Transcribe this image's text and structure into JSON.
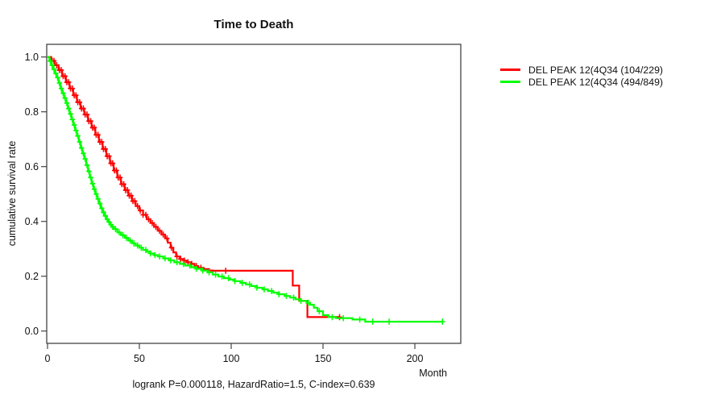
{
  "chart_data": {
    "type": "line",
    "subtype": "kaplan-meier-step-curves",
    "title": "Time to Death",
    "xlabel": "Month",
    "ylabel": "cumulative survival rate",
    "footer": "logrank P=0.000118, HazardRatio=1.5, C-index=0.639",
    "xlim": [
      0,
      225
    ],
    "ylim": [
      0,
      1.0
    ],
    "x_ticks": [
      0,
      50,
      100,
      150,
      200
    ],
    "y_ticks": [
      "0.0",
      "0.2",
      "0.4",
      "0.6",
      "0.8",
      "1.0"
    ],
    "grid": false,
    "legend_position": "top-right-outside",
    "censor_mark": "plus",
    "colors": {
      "axis": "#444444",
      "text": "#111111",
      "background": "#ffffff"
    },
    "series": [
      {
        "name": "DEL PEAK 12(4Q34 (104/229)",
        "color": "#ff0000",
        "points": [
          [
            0,
            1.0
          ],
          [
            2,
            0.986
          ],
          [
            4,
            0.97
          ],
          [
            6,
            0.952
          ],
          [
            8,
            0.93
          ],
          [
            10,
            0.908
          ],
          [
            12,
            0.885
          ],
          [
            14,
            0.86
          ],
          [
            16,
            0.835
          ],
          [
            18,
            0.812
          ],
          [
            20,
            0.79
          ],
          [
            22,
            0.766
          ],
          [
            24,
            0.742
          ],
          [
            26,
            0.716
          ],
          [
            28,
            0.69
          ],
          [
            30,
            0.664
          ],
          [
            32,
            0.638
          ],
          [
            34,
            0.612
          ],
          [
            36,
            0.586
          ],
          [
            38,
            0.56
          ],
          [
            40,
            0.536
          ],
          [
            42,
            0.514
          ],
          [
            44,
            0.494
          ],
          [
            46,
            0.474
          ],
          [
            48,
            0.456
          ],
          [
            50,
            0.44
          ],
          [
            52,
            0.424
          ],
          [
            54,
            0.408
          ],
          [
            56,
            0.394
          ],
          [
            58,
            0.38
          ],
          [
            60,
            0.366
          ],
          [
            62,
            0.352
          ],
          [
            64,
            0.338
          ],
          [
            65.5,
            0.322
          ],
          [
            67,
            0.304
          ],
          [
            68.5,
            0.287
          ],
          [
            70,
            0.272
          ],
          [
            72,
            0.263
          ],
          [
            74,
            0.257
          ],
          [
            76,
            0.251
          ],
          [
            78,
            0.245
          ],
          [
            80,
            0.237
          ],
          [
            82,
            0.231
          ],
          [
            85,
            0.226
          ],
          [
            88,
            0.221
          ],
          [
            90,
            0.22
          ],
          [
            133.5,
            0.166
          ],
          [
            137,
            0.11
          ],
          [
            141.5,
            0.051
          ],
          [
            159,
            0.051
          ]
        ],
        "censor_times": [
          2.5,
          3.5,
          5,
          6.5,
          7.5,
          8.5,
          9.5,
          10.5,
          11.5,
          12.5,
          13.5,
          14.5,
          15.5,
          16.5,
          17.5,
          18.5,
          19.5,
          20.5,
          21.5,
          22.5,
          23.5,
          24.5,
          25.5,
          26.5,
          27.5,
          28.5,
          29.5,
          30.5,
          31.5,
          32.5,
          33.5,
          34.5,
          35.5,
          36.5,
          37.5,
          38.5,
          39.5,
          40.5,
          41.5,
          42.5,
          43.5,
          44.5,
          45.5,
          46.5,
          47.5,
          49,
          50.5,
          52,
          53.5,
          55,
          57,
          59,
          61,
          63,
          65,
          67.5,
          70.5,
          72.5,
          74.5,
          76.5,
          78.5,
          81,
          83.5,
          97,
          159
        ]
      },
      {
        "name": "DEL PEAK 12(4Q34 (494/849)",
        "color": "#00ff00",
        "points": [
          [
            0,
            1.0
          ],
          [
            1,
            0.985
          ],
          [
            2,
            0.97
          ],
          [
            3,
            0.955
          ],
          [
            4,
            0.94
          ],
          [
            5,
            0.925
          ],
          [
            6,
            0.905
          ],
          [
            7,
            0.885
          ],
          [
            8,
            0.868
          ],
          [
            9,
            0.85
          ],
          [
            10,
            0.832
          ],
          [
            11,
            0.812
          ],
          [
            12,
            0.792
          ],
          [
            13,
            0.772
          ],
          [
            14,
            0.752
          ],
          [
            15,
            0.732
          ],
          [
            16,
            0.712
          ],
          [
            17,
            0.69
          ],
          [
            18,
            0.668
          ],
          [
            19,
            0.648
          ],
          [
            20,
            0.628
          ],
          [
            21,
            0.605
          ],
          [
            22,
            0.583
          ],
          [
            23,
            0.56
          ],
          [
            24,
            0.538
          ],
          [
            25,
            0.518
          ],
          [
            26,
            0.5
          ],
          [
            27,
            0.482
          ],
          [
            28,
            0.465
          ],
          [
            29,
            0.448
          ],
          [
            30,
            0.433
          ],
          [
            31,
            0.42
          ],
          [
            32,
            0.408
          ],
          [
            33,
            0.398
          ],
          [
            34,
            0.388
          ],
          [
            35,
            0.38
          ],
          [
            36,
            0.372
          ],
          [
            38,
            0.36
          ],
          [
            40,
            0.35
          ],
          [
            42,
            0.34
          ],
          [
            44,
            0.33
          ],
          [
            46,
            0.32
          ],
          [
            48,
            0.312
          ],
          [
            50,
            0.304
          ],
          [
            52,
            0.296
          ],
          [
            54,
            0.289
          ],
          [
            56,
            0.283
          ],
          [
            58,
            0.277
          ],
          [
            60,
            0.272
          ],
          [
            63,
            0.265
          ],
          [
            66,
            0.258
          ],
          [
            69,
            0.251
          ],
          [
            72,
            0.245
          ],
          [
            75,
            0.239
          ],
          [
            78,
            0.233
          ],
          [
            81,
            0.227
          ],
          [
            84,
            0.221
          ],
          [
            87,
            0.214
          ],
          [
            90,
            0.206
          ],
          [
            93,
            0.199
          ],
          [
            96,
            0.193
          ],
          [
            99,
            0.188
          ],
          [
            102,
            0.182
          ],
          [
            105,
            0.176
          ],
          [
            108,
            0.17
          ],
          [
            111,
            0.164
          ],
          [
            114,
            0.158
          ],
          [
            117,
            0.152
          ],
          [
            120,
            0.146
          ],
          [
            123,
            0.14
          ],
          [
            126,
            0.134
          ],
          [
            129,
            0.128
          ],
          [
            132,
            0.122
          ],
          [
            135,
            0.116
          ],
          [
            138,
            0.11
          ],
          [
            141,
            0.103
          ],
          [
            143,
            0.096
          ],
          [
            145,
            0.085
          ],
          [
            147,
            0.072
          ],
          [
            150,
            0.058
          ],
          [
            153,
            0.051
          ],
          [
            157,
            0.047
          ],
          [
            166,
            0.042
          ],
          [
            173,
            0.034
          ],
          [
            215,
            0.034
          ]
        ],
        "censor_times": [
          1.5,
          2.5,
          3.5,
          4.5,
          5.5,
          6.5,
          7.5,
          8.5,
          9.5,
          10.5,
          11.5,
          12.5,
          13.5,
          14.5,
          15.5,
          16.5,
          17.5,
          18.5,
          19.5,
          20.5,
          21.5,
          22.5,
          23.5,
          24.5,
          25.5,
          26.5,
          27.5,
          28.5,
          29.5,
          30.5,
          31.5,
          32.5,
          33.5,
          34.5,
          35.5,
          37,
          39,
          41,
          43,
          45,
          47,
          49,
          51,
          53.5,
          56,
          58.5,
          61,
          64,
          67,
          70.5,
          74,
          77.5,
          81,
          84.5,
          88,
          91.5,
          95,
          98.5,
          102,
          106,
          110,
          114,
          118,
          122,
          126,
          130,
          134,
          138,
          142,
          148,
          155,
          161,
          170,
          177,
          186,
          215
        ]
      }
    ]
  }
}
